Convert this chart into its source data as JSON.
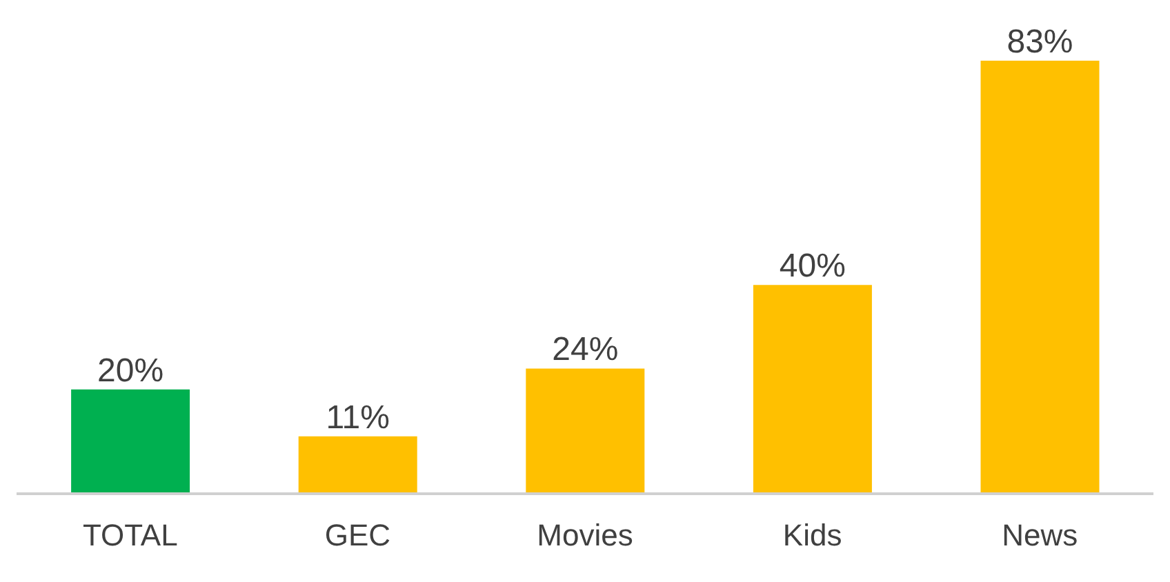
{
  "chart_data": {
    "type": "bar",
    "categories": [
      "TOTAL",
      "GEC",
      "Movies",
      "Kids",
      "News"
    ],
    "values": [
      20,
      11,
      24,
      40,
      83
    ],
    "colors": [
      "#00b050",
      "#ffc000",
      "#ffc000",
      "#ffc000",
      "#ffc000"
    ],
    "value_labels": [
      "20%",
      "11%",
      "24%",
      "40%",
      "83%"
    ]
  }
}
